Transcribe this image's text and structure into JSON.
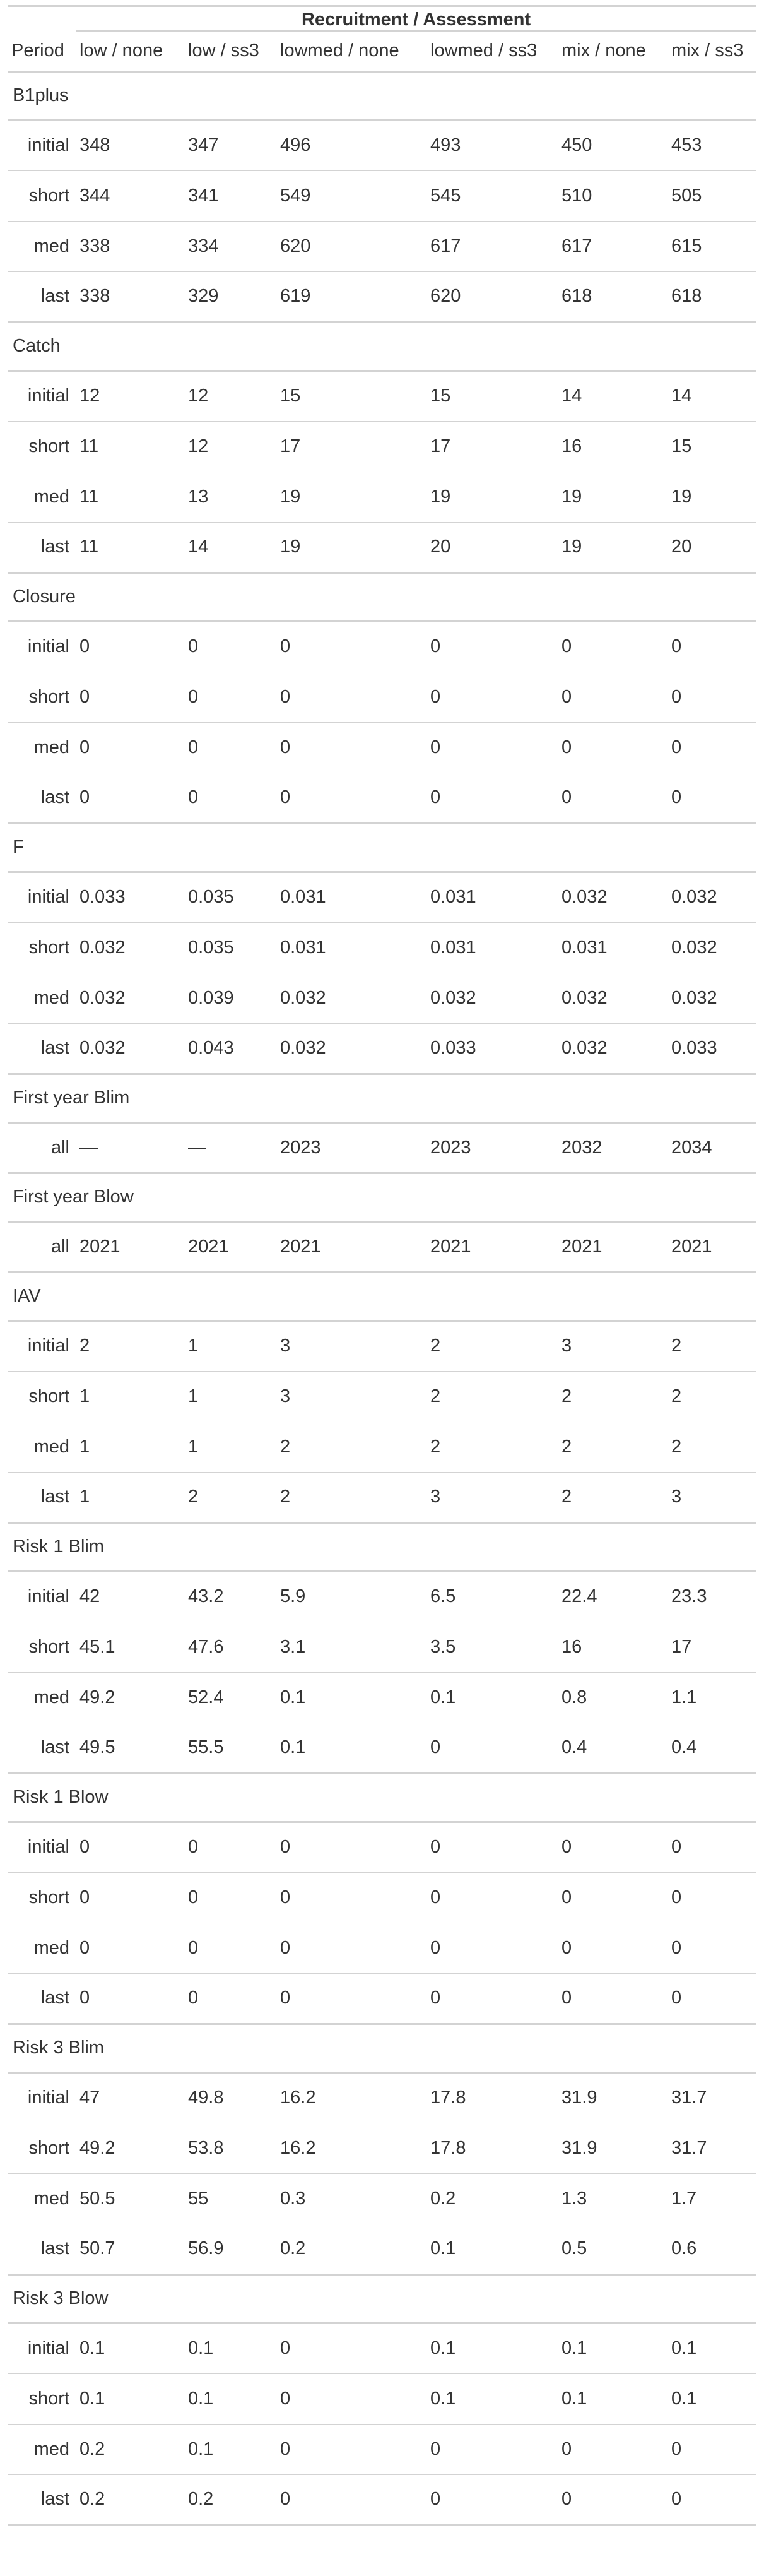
{
  "table": {
    "spanner_label": "Recruitment / Assessment",
    "stub_header": "Period",
    "columns": [
      "low / none",
      "low / ss3",
      "lowmed / none",
      "lowmed / ss3",
      "mix / none",
      "mix / ss3"
    ],
    "groups": [
      {
        "name": "B1plus",
        "rows": [
          {
            "label": "initial",
            "values": [
              "348",
              "347",
              "496",
              "493",
              "450",
              "453"
            ]
          },
          {
            "label": "short",
            "values": [
              "344",
              "341",
              "549",
              "545",
              "510",
              "505"
            ]
          },
          {
            "label": "med",
            "values": [
              "338",
              "334",
              "620",
              "617",
              "617",
              "615"
            ]
          },
          {
            "label": "last",
            "values": [
              "338",
              "329",
              "619",
              "620",
              "618",
              "618"
            ]
          }
        ]
      },
      {
        "name": "Catch",
        "rows": [
          {
            "label": "initial",
            "values": [
              "12",
              "12",
              "15",
              "15",
              "14",
              "14"
            ]
          },
          {
            "label": "short",
            "values": [
              "11",
              "12",
              "17",
              "17",
              "16",
              "15"
            ]
          },
          {
            "label": "med",
            "values": [
              "11",
              "13",
              "19",
              "19",
              "19",
              "19"
            ]
          },
          {
            "label": "last",
            "values": [
              "11",
              "14",
              "19",
              "20",
              "19",
              "20"
            ]
          }
        ]
      },
      {
        "name": "Closure",
        "rows": [
          {
            "label": "initial",
            "values": [
              "0",
              "0",
              "0",
              "0",
              "0",
              "0"
            ]
          },
          {
            "label": "short",
            "values": [
              "0",
              "0",
              "0",
              "0",
              "0",
              "0"
            ]
          },
          {
            "label": "med",
            "values": [
              "0",
              "0",
              "0",
              "0",
              "0",
              "0"
            ]
          },
          {
            "label": "last",
            "values": [
              "0",
              "0",
              "0",
              "0",
              "0",
              "0"
            ]
          }
        ]
      },
      {
        "name": "F",
        "rows": [
          {
            "label": "initial",
            "values": [
              "0.033",
              "0.035",
              "0.031",
              "0.031",
              "0.032",
              "0.032"
            ]
          },
          {
            "label": "short",
            "values": [
              "0.032",
              "0.035",
              "0.031",
              "0.031",
              "0.031",
              "0.032"
            ]
          },
          {
            "label": "med",
            "values": [
              "0.032",
              "0.039",
              "0.032",
              "0.032",
              "0.032",
              "0.032"
            ]
          },
          {
            "label": "last",
            "values": [
              "0.032",
              "0.043",
              "0.032",
              "0.033",
              "0.032",
              "0.033"
            ]
          }
        ]
      },
      {
        "name": "First year Blim",
        "rows": [
          {
            "label": "all",
            "values": [
              "—",
              "—",
              "2023",
              "2023",
              "2032",
              "2034"
            ]
          }
        ]
      },
      {
        "name": "First year Blow",
        "rows": [
          {
            "label": "all",
            "values": [
              "2021",
              "2021",
              "2021",
              "2021",
              "2021",
              "2021"
            ]
          }
        ]
      },
      {
        "name": "IAV",
        "rows": [
          {
            "label": "initial",
            "values": [
              "2",
              "1",
              "3",
              "2",
              "3",
              "2"
            ]
          },
          {
            "label": "short",
            "values": [
              "1",
              "1",
              "3",
              "2",
              "2",
              "2"
            ]
          },
          {
            "label": "med",
            "values": [
              "1",
              "1",
              "2",
              "2",
              "2",
              "2"
            ]
          },
          {
            "label": "last",
            "values": [
              "1",
              "2",
              "2",
              "3",
              "2",
              "3"
            ]
          }
        ]
      },
      {
        "name": "Risk 1 Blim",
        "rows": [
          {
            "label": "initial",
            "values": [
              "42",
              "43.2",
              "5.9",
              "6.5",
              "22.4",
              "23.3"
            ]
          },
          {
            "label": "short",
            "values": [
              "45.1",
              "47.6",
              "3.1",
              "3.5",
              "16",
              "17"
            ]
          },
          {
            "label": "med",
            "values": [
              "49.2",
              "52.4",
              "0.1",
              "0.1",
              "0.8",
              "1.1"
            ]
          },
          {
            "label": "last",
            "values": [
              "49.5",
              "55.5",
              "0.1",
              "0",
              "0.4",
              "0.4"
            ]
          }
        ]
      },
      {
        "name": "Risk 1 Blow",
        "rows": [
          {
            "label": "initial",
            "values": [
              "0",
              "0",
              "0",
              "0",
              "0",
              "0"
            ]
          },
          {
            "label": "short",
            "values": [
              "0",
              "0",
              "0",
              "0",
              "0",
              "0"
            ]
          },
          {
            "label": "med",
            "values": [
              "0",
              "0",
              "0",
              "0",
              "0",
              "0"
            ]
          },
          {
            "label": "last",
            "values": [
              "0",
              "0",
              "0",
              "0",
              "0",
              "0"
            ]
          }
        ]
      },
      {
        "name": "Risk 3 Blim",
        "rows": [
          {
            "label": "initial",
            "values": [
              "47",
              "49.8",
              "16.2",
              "17.8",
              "31.9",
              "31.7"
            ]
          },
          {
            "label": "short",
            "values": [
              "49.2",
              "53.8",
              "16.2",
              "17.8",
              "31.9",
              "31.7"
            ]
          },
          {
            "label": "med",
            "values": [
              "50.5",
              "55",
              "0.3",
              "0.2",
              "1.3",
              "1.7"
            ]
          },
          {
            "label": "last",
            "values": [
              "50.7",
              "56.9",
              "0.2",
              "0.1",
              "0.5",
              "0.6"
            ]
          }
        ]
      },
      {
        "name": "Risk 3 Blow",
        "rows": [
          {
            "label": "initial",
            "values": [
              "0.1",
              "0.1",
              "0",
              "0.1",
              "0.1",
              "0.1"
            ]
          },
          {
            "label": "short",
            "values": [
              "0.1",
              "0.1",
              "0",
              "0.1",
              "0.1",
              "0.1"
            ]
          },
          {
            "label": "med",
            "values": [
              "0.2",
              "0.1",
              "0",
              "0",
              "0",
              "0"
            ]
          },
          {
            "label": "last",
            "values": [
              "0.2",
              "0.2",
              "0",
              "0",
              "0",
              "0"
            ]
          }
        ]
      }
    ]
  }
}
